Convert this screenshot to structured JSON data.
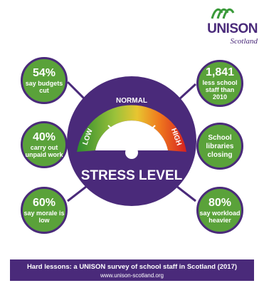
{
  "logo": {
    "name": "UNISON",
    "sub": "Scotland"
  },
  "gauge": {
    "low": "LOW",
    "normal": "NORMAL",
    "high": "HIGH",
    "label": "STRESS LEVEL"
  },
  "stats": {
    "s1": {
      "big": "54%",
      "small": "say budgets cut"
    },
    "s2": {
      "big": "40%",
      "small": "carry out unpaid work"
    },
    "s3": {
      "big": "60%",
      "small": "say morale is low"
    },
    "s4": {
      "big": "1,841",
      "small": "less school staff than 2010"
    },
    "s5": {
      "big": "",
      "small": "School libraries closing"
    },
    "s6": {
      "big": "80%",
      "small": "say workload heavier"
    }
  },
  "footer": {
    "title": "Hard lessons: a UNISON survey of school staff in Scotland (2017)",
    "url": "www.unison-scotland.org"
  },
  "colors": {
    "purple": "#4a2a7a",
    "green": "#5aa23a"
  }
}
